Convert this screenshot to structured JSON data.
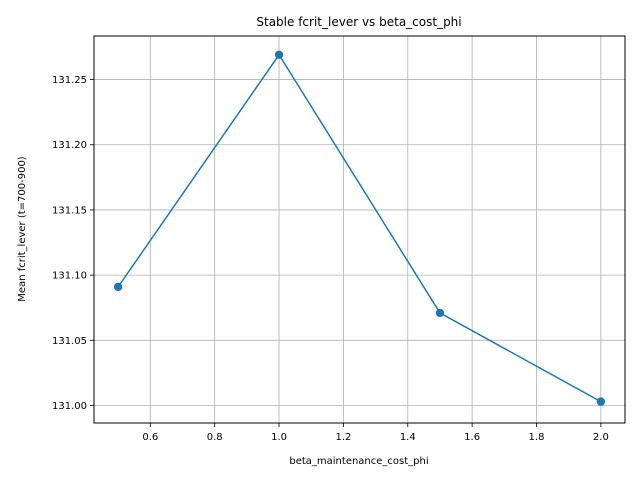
{
  "chart_data": {
    "type": "line",
    "title": "Stable fcrit_lever vs beta_cost_phi",
    "xlabel": "beta_maintenance_cost_phi",
    "ylabel": "Mean fcrit_lever (t=700-900)",
    "xlim": [
      0.425,
      2.075
    ],
    "ylim": [
      130.9866,
      131.2834
    ],
    "x_ticks": [
      0.6,
      0.8,
      1.0,
      1.2,
      1.4,
      1.6,
      1.8,
      2.0
    ],
    "x_tick_labels": [
      "0.6",
      "0.8",
      "1.0",
      "1.2",
      "1.4",
      "1.6",
      "1.8",
      "2.0"
    ],
    "y_ticks": [
      131.0,
      131.05,
      131.1,
      131.15,
      131.2,
      131.25
    ],
    "y_tick_labels": [
      "131.00",
      "131.05",
      "131.10",
      "131.15",
      "131.20",
      "131.25"
    ],
    "grid": true,
    "series": [
      {
        "color": "#1f77b4",
        "marker": "circle",
        "x": [
          0.5,
          1.0,
          1.5,
          2.0
        ],
        "y": [
          131.091,
          131.269,
          131.071,
          131.003
        ]
      }
    ]
  }
}
